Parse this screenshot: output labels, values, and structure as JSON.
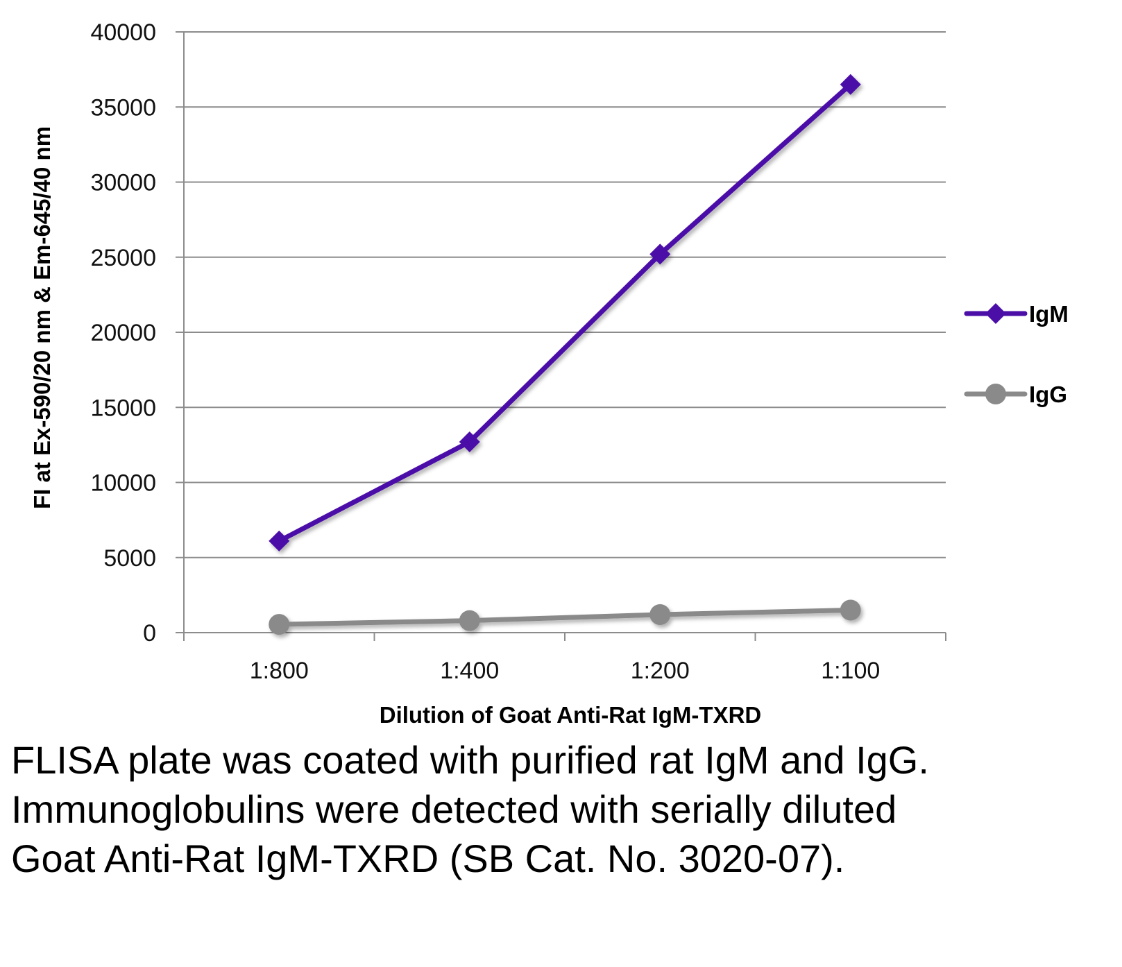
{
  "chart_data": {
    "type": "line",
    "categories": [
      "1:800",
      "1:400",
      "1:200",
      "1:100"
    ],
    "series": [
      {
        "name": "IgM",
        "color": "#4b0fa8",
        "marker": "diamond",
        "values": [
          6100,
          12700,
          25200,
          36500
        ]
      },
      {
        "name": "IgG",
        "color": "#8a8a8a",
        "marker": "circle",
        "values": [
          550,
          800,
          1200,
          1500
        ]
      }
    ],
    "title": "",
    "xlabel": "Dilution of Goat Anti-Rat IgM-TXRD",
    "ylabel": "FI at Ex-590/20 nm & Em-645/40 nm",
    "ylim": [
      0,
      40000
    ],
    "yticks": [
      "0",
      "5000",
      "10000",
      "15000",
      "20000",
      "25000",
      "30000",
      "35000",
      "40000"
    ],
    "grid": true,
    "legend_position": "right"
  },
  "caption": "FLISA plate was coated with purified rat IgM and IgG.  Immunoglobulins were detected with serially diluted Goat Anti-Rat IgM-TXRD (SB Cat. No. 3020-07)."
}
